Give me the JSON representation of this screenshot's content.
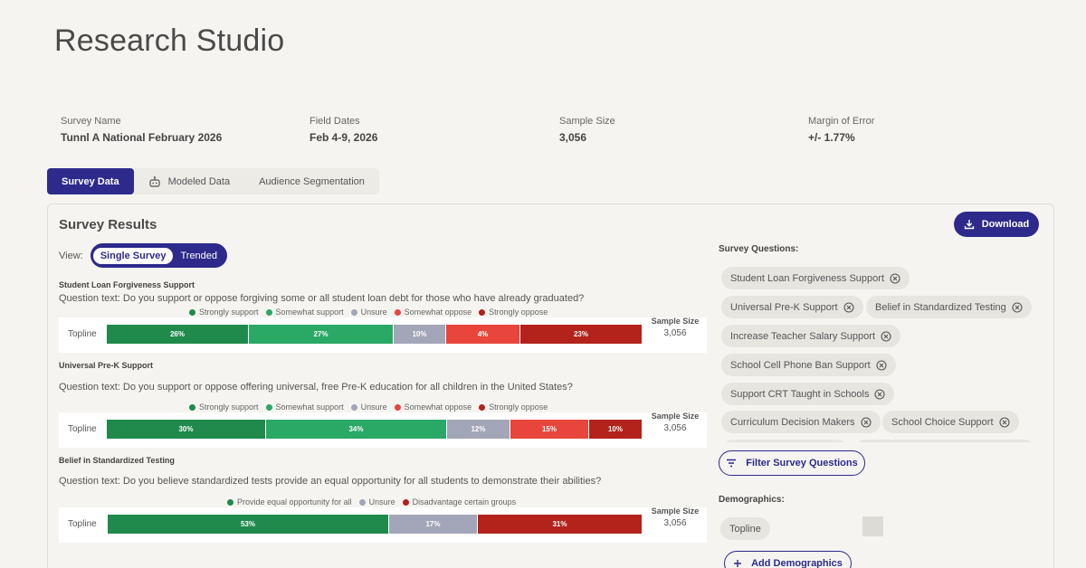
{
  "app": {
    "title": "Research Studio"
  },
  "survey_meta": [
    {
      "label": "Survey Name",
      "value": "Tunnl A National February 2026"
    },
    {
      "label": "Field Dates",
      "value": "Feb 4-9, 2026"
    },
    {
      "label": "Sample Size",
      "value": "3,056"
    },
    {
      "label": "Margin of Error",
      "value": "+/- 1.77%"
    }
  ],
  "tabs": [
    {
      "label": "Survey Data",
      "active": true
    },
    {
      "label": "Modeled Data",
      "icon": "robot-icon"
    },
    {
      "label": "Audience Segmentation"
    }
  ],
  "results": {
    "title": "Survey Results",
    "download_label": "Download",
    "view_label": "View:",
    "view_options": [
      "Single Survey",
      "Trended"
    ],
    "sample_size_label": "Sample Size",
    "questions": [
      {
        "title": "Student Loan Forgiveness Support",
        "text": "Question text: Do you support or oppose forgiving some or all student loan debt for those who have already graduated?",
        "legend": [
          "Strongly support",
          "Somewhat support",
          "Unsure",
          "Somewhat oppose",
          "Strongly oppose"
        ],
        "row_label": "Topline",
        "values": [
          "26%",
          "27%",
          "10%",
          "4%",
          "23%"
        ],
        "sample_size": "3,056"
      },
      {
        "title": "Universal Pre-K Support",
        "text": "Question text: Do you support or oppose offering universal, free Pre-K education for all children in the United States?",
        "legend": [
          "Strongly support",
          "Somewhat support",
          "Unsure",
          "Somewhat oppose",
          "Strongly oppose"
        ],
        "row_label": "Topline",
        "values": [
          "30%",
          "34%",
          "12%",
          "15%",
          "10%"
        ],
        "sample_size": "3,056"
      },
      {
        "title": "Belief in Standardized Testing",
        "text": "Question text: Do you believe standardized tests provide an equal opportunity for all students to demonstrate their abilities?",
        "legend": [
          "Provide equal opportunity for all",
          "Unsure",
          "Disadvantage certain groups"
        ],
        "row_label": "Topline",
        "values": [
          "53%",
          "17%",
          "31%"
        ],
        "sample_size": "3,056"
      }
    ]
  },
  "colors": {
    "primary": "#2d2a8c",
    "strong_support": "#1f8a4c",
    "somewhat_support": "#2aa866",
    "unsure": "#a3a5b8",
    "somewhat_oppose": "#e8453c",
    "strong_oppose": "#b3221b"
  },
  "sidebar": {
    "questions_heading": "Survey Questions:",
    "question_chips": [
      "Student Loan Forgiveness Support",
      "Universal Pre-K Support",
      "Belief in Standardized Testing",
      "Increase Teacher Salary Support",
      "School Cell Phone Ban Support",
      "Support CRT Taught in Schools",
      "Curriculum Decision Makers",
      "School Choice Support"
    ],
    "filter_label": "Filter Survey Questions",
    "demographics_heading": "Demographics:",
    "demographic_chips": [
      "Topline"
    ],
    "add_label": "Add Demographics"
  }
}
